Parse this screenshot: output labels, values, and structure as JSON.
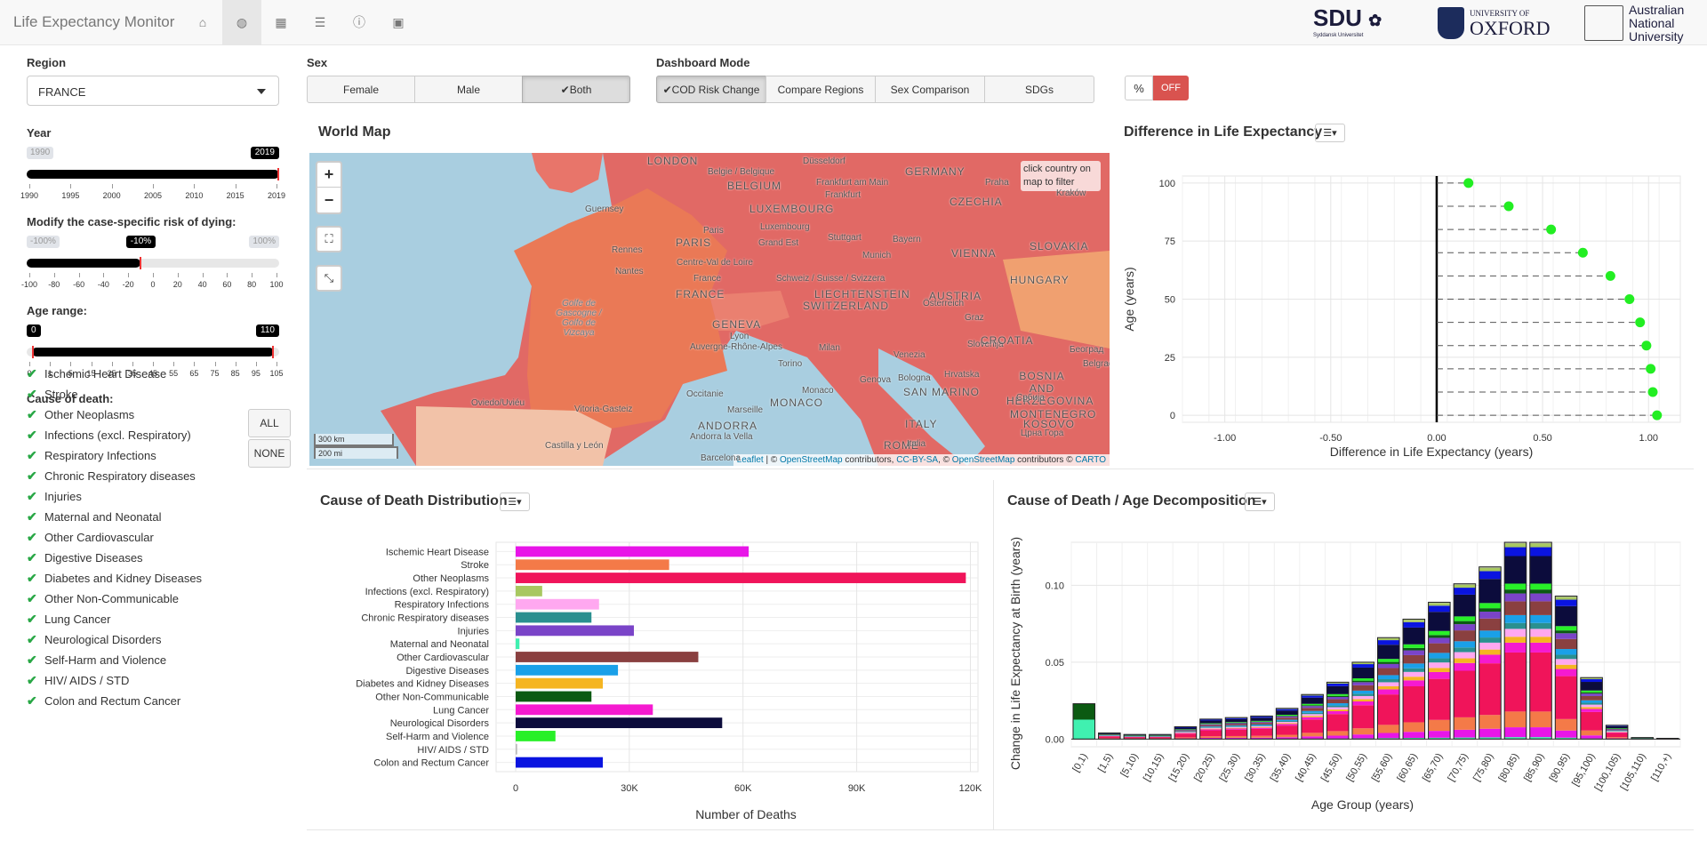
{
  "app": {
    "title": "Life Expectancy Monitor"
  },
  "nav": {
    "icons": [
      "home-icon",
      "globe-icon",
      "calculator-icon",
      "database-icon",
      "info-icon",
      "id-card-icon"
    ],
    "active": 1
  },
  "logos": {
    "sdu": "SDU",
    "sdu_sub": "Syddansk Universitet",
    "oxford_top": "UNIVERSITY OF",
    "oxford": "OXFORD",
    "anu": [
      "Australian",
      "National",
      "University"
    ]
  },
  "sidebar": {
    "region_label": "Region",
    "region_value": "FRANCE",
    "year_label": "Year",
    "year": {
      "min": "1990",
      "max": "2019",
      "value": "2019",
      "fraction": 1.0,
      "ticks": [
        "1990",
        "1995",
        "2000",
        "2005",
        "2010",
        "2015",
        "2019"
      ]
    },
    "risk_label": "Modify the case-specific risk of dying:",
    "risk": {
      "min": "-100%",
      "max": "100%",
      "value": "-10%",
      "fraction": 0.45,
      "ticks": [
        "-100",
        "-80",
        "-60",
        "-40",
        "-20",
        "0",
        "20",
        "40",
        "60",
        "80",
        "100"
      ]
    },
    "age_label": "Age range:",
    "age": {
      "min": "0",
      "max": "110",
      "from_fraction": 0.0,
      "to_fraction": 1.0,
      "ticks": [
        "0",
        "1",
        "5",
        "15",
        "25",
        "35",
        "45",
        "55",
        "65",
        "75",
        "85",
        "95",
        "105"
      ]
    },
    "cod_label": "Cause of death:",
    "causes": [
      "Ischemic Heart Disease",
      "Stroke",
      "Other Neoplasms",
      "Infections (excl. Respiratory)",
      "Respiratory Infections",
      "Chronic Respiratory diseases",
      "Injuries",
      "Maternal and Neonatal",
      "Other Cardiovascular",
      "Digestive Diseases",
      "Diabetes and Kidney Diseases",
      "Other Non-Communicable",
      "Lung Cancer",
      "Neurological Disorders",
      "Self-Harm and Violence",
      "HIV/ AIDS / STD",
      "Colon and Rectum Cancer"
    ],
    "all_label": "ALL",
    "none_label": "NONE"
  },
  "controls": {
    "sex_label": "Sex",
    "sex_options": [
      "Female",
      "Male",
      "Both"
    ],
    "sex_active": 2,
    "mode_label": "Dashboard Mode",
    "mode_options": [
      "COD Risk Change",
      "Compare Regions",
      "Sex Comparison",
      "SDGs"
    ],
    "mode_active": 0,
    "pct_label": "%",
    "toggle_label": "OFF"
  },
  "map": {
    "title": "World Map",
    "hint": "click country on map to filter",
    "scale_km": "300 km",
    "scale_mi": "200 mi",
    "attribution": {
      "leaflet": "Leaflet",
      "sep1": " | © ",
      "osm1": "OpenStreetMap",
      "mid": " contributors, ",
      "ccbysa": "CC-BY-SA",
      "sep2": ", © ",
      "osm2": "OpenStreetMap",
      "mid2": " contributors © ",
      "carto": "CARTO"
    },
    "labels": [
      "LONDON",
      "Düsseldorf",
      "GERMANY",
      "BELGIUM",
      "Belgie / Belgique",
      "Frankfurt am Main",
      "Frankfurt",
      "CZECHIA",
      "Praha",
      "Kraków",
      "Guernsey",
      "LUXEMBOURG",
      "Luxembourg",
      "PARIS",
      "Paris",
      "Grand Est",
      "Stuttgart",
      "Bayern",
      "SLOVAKIA",
      "Rennes",
      "Munich",
      "VIENNA",
      "Centre-Val de Loire",
      "Nantes",
      "France",
      "FRANCE",
      "Schweiz / Suisse / Svizzera",
      "LIECHTENSTEIN",
      "SWITZERLAND",
      "AUSTRIA",
      "Österreich",
      "Graz",
      "HUNGARY",
      "Golfe de Gascogne / Golfo de Vizcaya",
      "GENEVA",
      "Lyon",
      "Auvergne-Rhône-Alpes",
      "Milan",
      "Venezia",
      "Slovenija",
      "CROATIA",
      "Torino",
      "Bologna",
      "Hrvatska",
      "BOSNIA AND HERZEGOVINA",
      "Београд",
      "Belgrad",
      "Occitanie",
      "Monaco",
      "MONACO",
      "Genova",
      "SAN MARINO",
      "Србија",
      "Oviedo/Uviéu",
      "Vitoria-Gasteiz",
      "Marseille",
      "ANDORRA",
      "Andorra la Vella",
      "ITALY",
      "MONTENEGRO",
      "KOSOVO",
      "Castilla y León",
      "Barcelona",
      "ROME",
      "Italia",
      "Црна Гора"
    ]
  },
  "diff_chart": {
    "title": "Difference in Life Expectancy",
    "chart_data": {
      "type": "scatter",
      "title": "",
      "xlabel": "Difference in Life Expectancy (years)",
      "ylabel": "Age (years)",
      "xlim": [
        -1.2,
        1.15
      ],
      "ylim": [
        -3,
        103
      ],
      "xticks": [
        "-1.00",
        "-0.50",
        "0.00",
        "0.50",
        "1.00"
      ],
      "xtick_values": [
        -1.0,
        -0.5,
        0.0,
        0.5,
        1.0
      ],
      "yticks": [
        "0",
        "25",
        "50",
        "75",
        "100"
      ],
      "ytick_values": [
        0,
        25,
        50,
        75,
        100
      ],
      "points": [
        {
          "age": 100,
          "diff": 0.15
        },
        {
          "age": 90,
          "diff": 0.34
        },
        {
          "age": 80,
          "diff": 0.54
        },
        {
          "age": 70,
          "diff": 0.69
        },
        {
          "age": 60,
          "diff": 0.82
        },
        {
          "age": 50,
          "diff": 0.91
        },
        {
          "age": 40,
          "diff": 0.96
        },
        {
          "age": 30,
          "diff": 0.99
        },
        {
          "age": 20,
          "diff": 1.01
        },
        {
          "age": 10,
          "diff": 1.02
        },
        {
          "age": 0,
          "diff": 1.04
        }
      ],
      "color": "#22ee22"
    }
  },
  "cod_chart": {
    "title": "Cause of Death Distribution",
    "chart_data": {
      "type": "bar",
      "orientation": "horizontal",
      "xlabel": "Number of Deaths",
      "xlim": [
        0,
        122000
      ],
      "xticks": [
        "0",
        "30K",
        "60K",
        "90K",
        "120K"
      ],
      "xtick_values": [
        0,
        30000,
        60000,
        90000,
        120000
      ],
      "categories": [
        "Ischemic Heart Disease",
        "Stroke",
        "Other Neoplasms",
        "Infections (excl. Respiratory)",
        "Respiratory Infections",
        "Chronic Respiratory diseases",
        "Injuries",
        "Maternal and Neonatal",
        "Other Cardiovascular",
        "Digestive Diseases",
        "Diabetes and Kidney Diseases",
        "Other Non-Communicable",
        "Lung Cancer",
        "Neurological Disorders",
        "Self-Harm and Violence",
        "HIV/ AIDS / STD",
        "Colon and Rectum Cancer"
      ],
      "values": [
        61500,
        40500,
        118800,
        7000,
        22000,
        20000,
        31200,
        1000,
        48200,
        27000,
        23000,
        20000,
        36200,
        54500,
        10500,
        400,
        23000
      ],
      "colors": [
        "#e815e8",
        "#f47a48",
        "#f0145a",
        "#a8c860",
        "#ffa8f0",
        "#2a9090",
        "#7a44c8",
        "#40f0b0",
        "#8a4040",
        "#1aa0e8",
        "#f5b521",
        "#0b5a12",
        "#f51ad0",
        "#0c0c3c",
        "#28f028",
        "#bbbbbb",
        "#0a14e0"
      ]
    }
  },
  "decomp_chart": {
    "title": "Cause of Death / Age Decomposition",
    "chart_data": {
      "type": "bar",
      "stacked": true,
      "xlabel": "Age Group (years)",
      "ylabel": "Change in Life Expectancy at Birth (years)",
      "ylim": [
        -0.005,
        0.128
      ],
      "yticks": [
        "0.00",
        "0.05",
        "0.10"
      ],
      "ytick_values": [
        0,
        0.05,
        0.1
      ],
      "categories": [
        "[0,1)",
        "[1,5)",
        "[5,10)",
        "[10,15)",
        "[15,20)",
        "[20,25)",
        "[25,30)",
        "[30,35)",
        "[35,40)",
        "[40,45)",
        "[45,50)",
        "[50,55)",
        "[55,60)",
        "[60,65)",
        "[65,70)",
        "[70,75)",
        "[75,80)",
        "[80,85)",
        "[85,90)",
        "[90,95)",
        "[95,100)",
        "[100,105)",
        "[105,110)",
        "[110,+)"
      ],
      "totals": [
        0.023,
        0.004,
        0.003,
        0.003,
        0.008,
        0.013,
        0.014,
        0.015,
        0.02,
        0.029,
        0.037,
        0.05,
        0.066,
        0.078,
        0.089,
        0.101,
        0.112,
        0.128,
        0.128,
        0.093,
        0.04,
        0.009,
        0.001,
        0.0005
      ],
      "series_colors": [
        "#e815e8",
        "#f47a48",
        "#f0145a",
        "#a8c860",
        "#ffa8f0",
        "#2a9090",
        "#7a44c8",
        "#40f0b0",
        "#8a4040",
        "#1aa0e8",
        "#f5b521",
        "#0b5a12",
        "#f51ad0",
        "#0c0c3c",
        "#28f028",
        "#bbbbbb",
        "#0a14e0"
      ]
    }
  }
}
